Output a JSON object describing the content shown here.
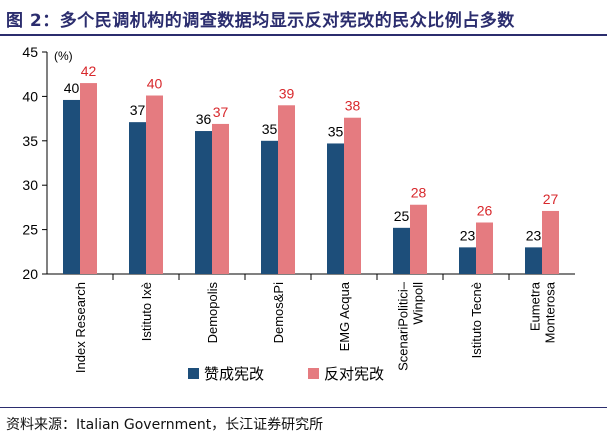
{
  "figure": {
    "title": "图 2：多个民调机构的调查数据均显示反对宪改的民众比例占多数",
    "source": "资料来源：Italian Government，长江证券研究所"
  },
  "colors": {
    "title": "#2b2d6e",
    "approve": "#1d4e7a",
    "oppose": "#e57b80",
    "oppose_label": "#d8282c",
    "axis": "#000000"
  },
  "chart_data": {
    "type": "bar",
    "unit": "(%)",
    "categories": [
      "Index Research",
      "Istituto Ixè",
      "Demopolis",
      "Demos&Pi",
      "EMG Acqua",
      "ScenariPolitici–Winpoll",
      "Istituto Tecnè",
      "Eumetra Monterosa"
    ],
    "category_lines": [
      [
        "Index Research"
      ],
      [
        "Istituto Ixè"
      ],
      [
        "Demopolis"
      ],
      [
        "Demos&Pi"
      ],
      [
        "EMG Acqua"
      ],
      [
        "ScenariPolitici–",
        "Winpoll"
      ],
      [
        "Istituto Tecnè"
      ],
      [
        "Eumetra",
        "Monterosa"
      ]
    ],
    "series": [
      {
        "name": "赞成宪改",
        "values": [
          39.6,
          37.1,
          36.1,
          35.0,
          34.7,
          25.2,
          23.0,
          23.0
        ],
        "labels": [
          "40",
          "37",
          "36",
          "35",
          "35",
          "25",
          "23",
          "23"
        ]
      },
      {
        "name": "反对宪改",
        "values": [
          41.5,
          40.1,
          36.9,
          39.0,
          37.6,
          27.8,
          25.8,
          27.1
        ],
        "labels": [
          "42",
          "40",
          "37",
          "39",
          "38",
          "28",
          "26",
          "27"
        ]
      }
    ],
    "ylim": [
      20,
      45
    ],
    "yticks": [
      20,
      25,
      30,
      35,
      40,
      45
    ],
    "legend_position": "bottom",
    "grid": false
  }
}
